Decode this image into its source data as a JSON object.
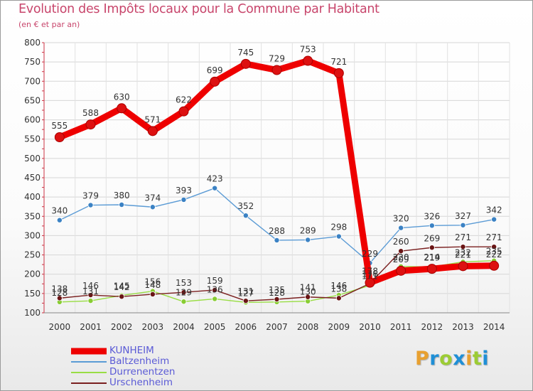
{
  "title": "Evolution des Impôts locaux pour la Commune par Habitant",
  "subtitle": "(en € et par an)",
  "brand": {
    "letters": [
      "P",
      "r",
      "o",
      "x",
      "i",
      "t",
      "i"
    ],
    "colors": [
      "#e8a030",
      "#1f8fd6",
      "#9ccc34",
      "#1f8fd6",
      "#e8a030",
      "#9ccc34",
      "#1f8fd6"
    ]
  },
  "chart_data": {
    "type": "line",
    "title": "Evolution des Impôts locaux pour la Commune par Habitant",
    "subtitle": "(en € et par an)",
    "x": [
      "2000",
      "2001",
      "2002",
      "2003",
      "2004",
      "2005",
      "2006",
      "2007",
      "2008",
      "2009",
      "2010",
      "2011",
      "2012",
      "2013",
      "2014"
    ],
    "ylim": [
      100,
      800
    ],
    "yticks": [
      100,
      150,
      200,
      250,
      300,
      350,
      400,
      450,
      500,
      550,
      600,
      650,
      700,
      750,
      800
    ],
    "grid": true,
    "legend_position": "bottom-left",
    "series": [
      {
        "name": "KUNHEIM",
        "color": "#ee0000",
        "markerColor": "#dd1111",
        "emphasis": true,
        "values": [
          555,
          588,
          630,
          571,
          622,
          699,
          745,
          729,
          753,
          721,
          178,
          209,
          214,
          221,
          222
        ],
        "labels": [
          "555",
          "588",
          "630",
          "571",
          "622",
          "699",
          "745",
          "729",
          "753",
          "721",
          "178",
          "209",
          "214",
          "221",
          "222"
        ]
      },
      {
        "name": "Baltzenheim",
        "color": "#5b9bd5",
        "markerColor": "#3b82c4",
        "values": [
          340,
          379,
          380,
          374,
          393,
          423,
          352,
          288,
          289,
          298,
          229,
          320,
          326,
          327,
          342
        ],
        "labels": [
          "340",
          "379",
          "380",
          "374",
          "393",
          "423",
          "352",
          "288",
          "289",
          "298",
          "229",
          "320",
          "326",
          "327",
          "342"
        ]
      },
      {
        "name": "Durrenentzen",
        "color": "#99dd44",
        "markerColor": "#88cc33",
        "values": [
          128,
          131,
          145,
          156,
          129,
          136,
          127,
          128,
          130,
          146,
          171,
          220,
          219,
          232,
          235
        ],
        "labels": [
          "128",
          "131",
          "145",
          "156",
          "129",
          "136",
          "127",
          "128",
          "130",
          "146",
          "171",
          "220",
          "219",
          "232",
          "235"
        ]
      },
      {
        "name": "Urschenheim",
        "color": "#7a1f1f",
        "markerColor": "#6a1515",
        "values": [
          138,
          146,
          142,
          148,
          153,
          159,
          131,
          135,
          141,
          138,
          176,
          260,
          269,
          271,
          271
        ],
        "labels": [
          "138",
          "146",
          "142",
          "148",
          "153",
          "159",
          "131",
          "135",
          "141",
          "138",
          "176",
          "260",
          "269",
          "271",
          "271"
        ]
      }
    ]
  }
}
